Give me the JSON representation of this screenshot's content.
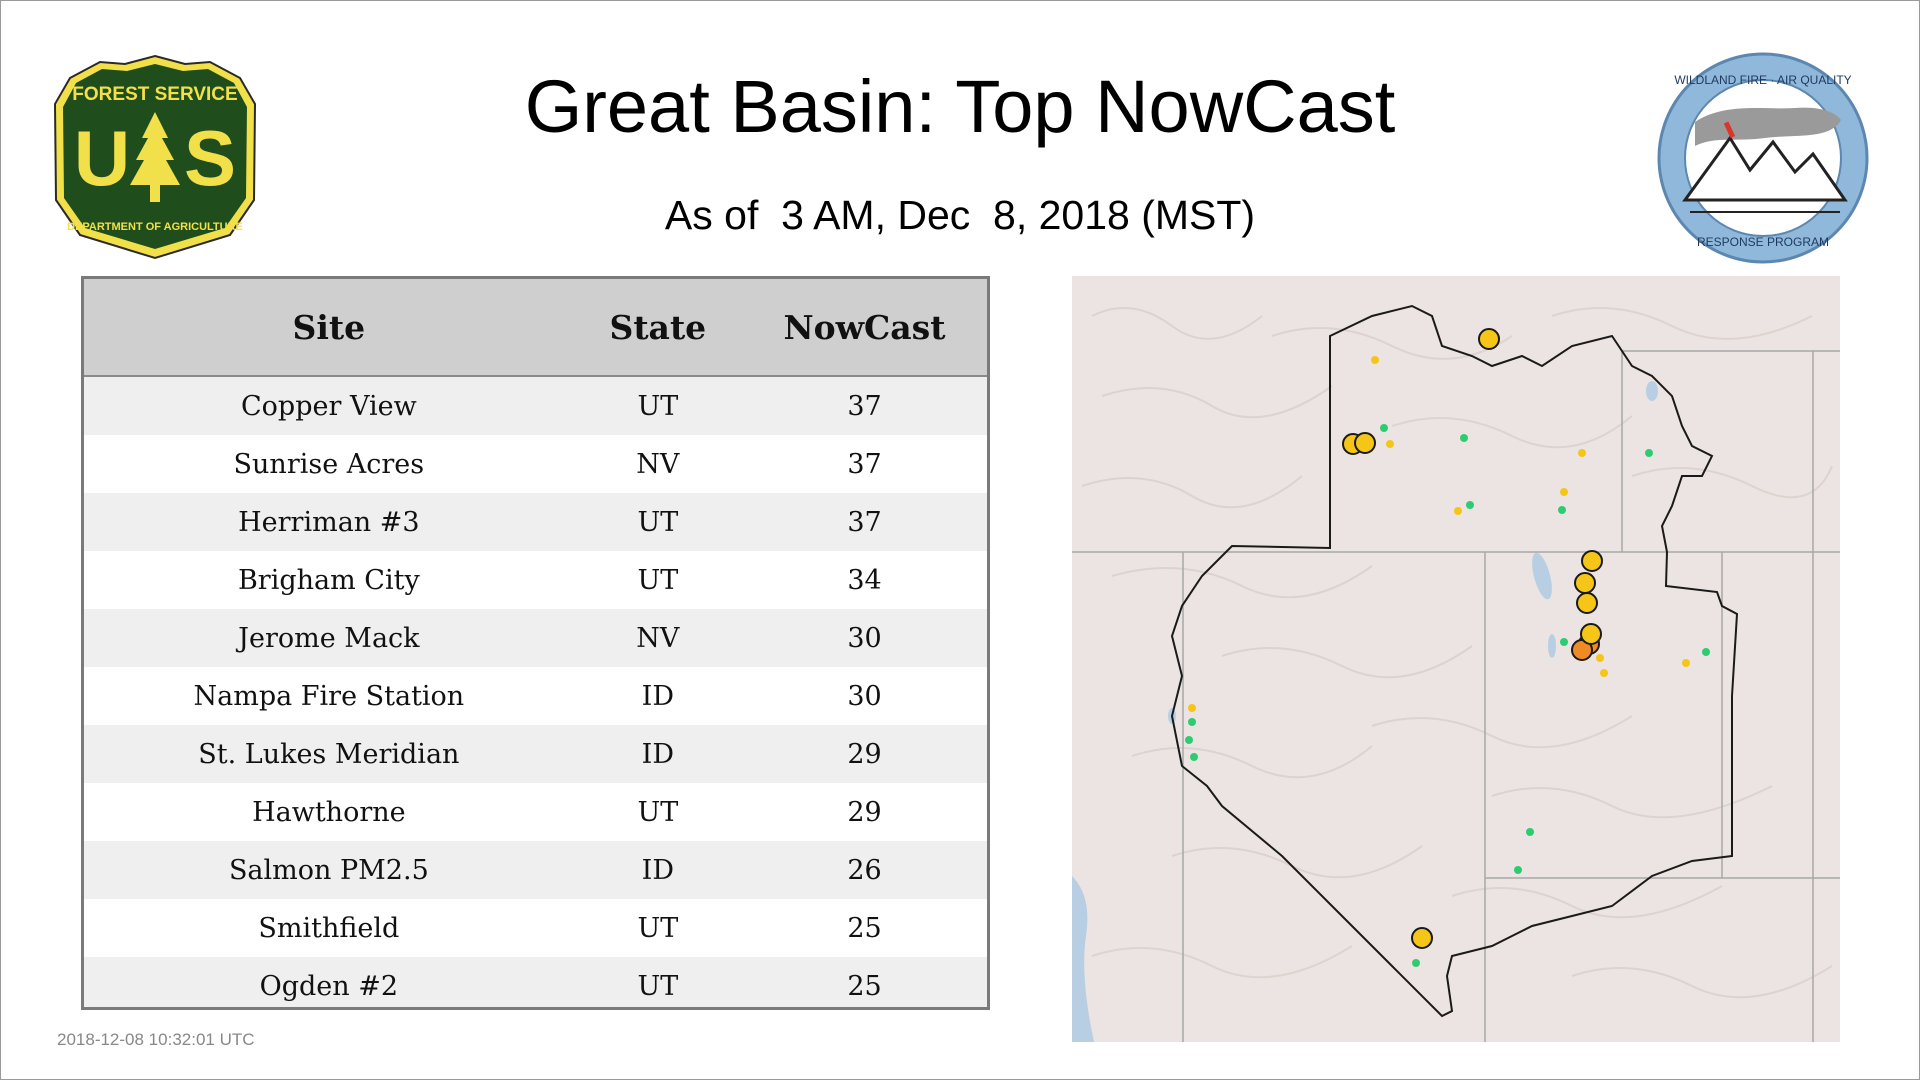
{
  "header": {
    "title": "Great Basin: Top NowCast",
    "subtitle": "As of  3 AM, Dec  8, 2018 (MST)"
  },
  "logos": {
    "left": {
      "top_text": "FOREST SERVICE",
      "letters": "U S",
      "bottom_text": "DEPARTMENT OF AGRICULTURE",
      "color": "#1f4e1c",
      "accent": "#f2e04a"
    },
    "right": {
      "top_text": "WILDLAND FIRE · AIR QUALITY",
      "bottom_text": "RESPONSE PROGRAM",
      "color": "#8fb8da"
    }
  },
  "table": {
    "headers": [
      "Site",
      "State",
      "NowCast"
    ],
    "rows": [
      {
        "site": "Copper View",
        "state": "UT",
        "nowcast": "37"
      },
      {
        "site": "Sunrise Acres",
        "state": "NV",
        "nowcast": "37"
      },
      {
        "site": "Herriman #3",
        "state": "UT",
        "nowcast": "37"
      },
      {
        "site": "Brigham City",
        "state": "UT",
        "nowcast": "34"
      },
      {
        "site": "Jerome Mack",
        "state": "NV",
        "nowcast": "30"
      },
      {
        "site": "Nampa Fire Station",
        "state": "ID",
        "nowcast": "30"
      },
      {
        "site": "St. Lukes Meridian",
        "state": "ID",
        "nowcast": "29"
      },
      {
        "site": "Hawthorne",
        "state": "UT",
        "nowcast": "29"
      },
      {
        "site": "Salmon PM2.5",
        "state": "ID",
        "nowcast": "26"
      },
      {
        "site": "Smithfield",
        "state": "UT",
        "nowcast": "25"
      },
      {
        "site": "Ogden #2",
        "state": "UT",
        "nowcast": "25"
      }
    ]
  },
  "map": {
    "colors": {
      "good": "#2ecc71",
      "moderate": "#f5c518",
      "usg": "#f08a24",
      "land": "#ece4e2",
      "water": "#b8cfe3",
      "outline": "#1a1a1a"
    }
  },
  "footer": {
    "timestamp": "2018-12-08 10:32:01 UTC"
  }
}
